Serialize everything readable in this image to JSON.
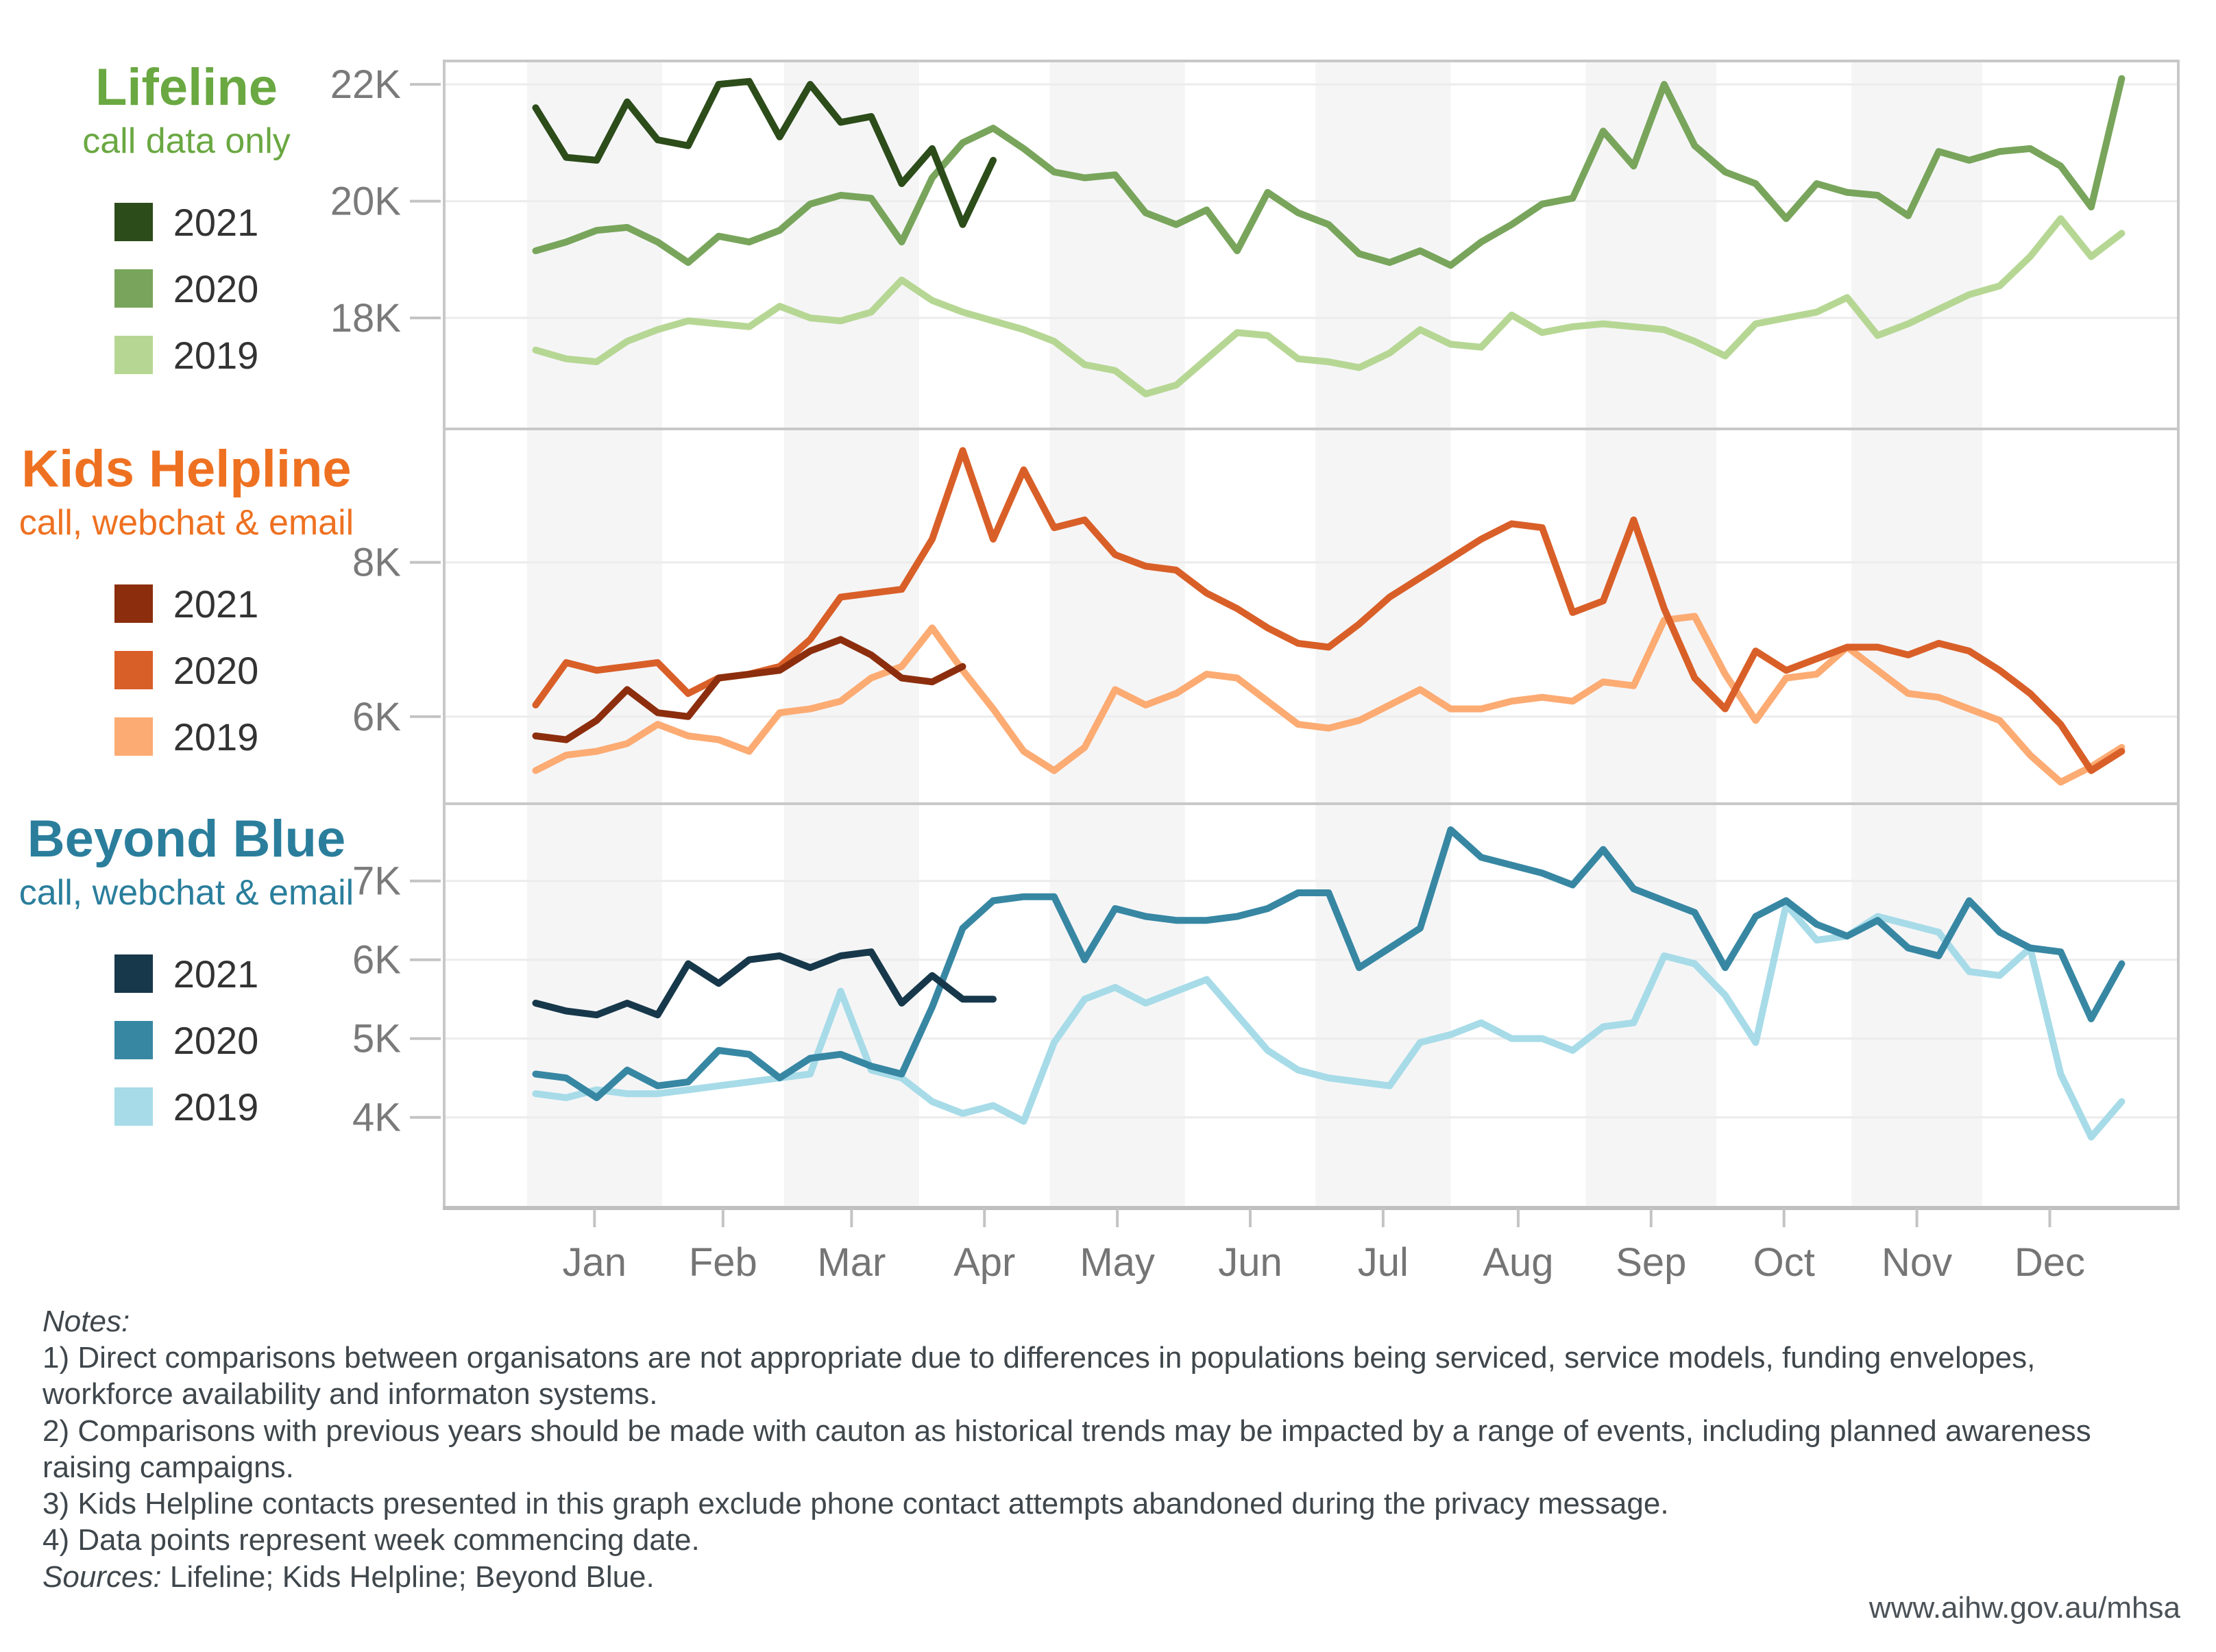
{
  "page": {
    "url": "www.aihw.gov.au/mhsa"
  },
  "months": [
    "Jan",
    "Feb",
    "Mar",
    "Apr",
    "May",
    "Jun",
    "Jul",
    "Aug",
    "Sep",
    "Oct",
    "Nov",
    "Dec"
  ],
  "chart_layout": {
    "shaded_months": [
      0,
      2,
      4,
      6,
      8,
      10
    ],
    "grid": "horizontal-only",
    "legend_position": "left",
    "x_axis": "weekly data points, Jan to Dec"
  },
  "chart_data": [
    {
      "type": "line",
      "title": "Lifeline",
      "subtitle": "call data only",
      "title_color": "#6aa842",
      "unit": "thousands of contacts per week",
      "ylim": [
        16.1,
        22.4
      ],
      "yticks": [
        {
          "value": 22,
          "label": "22K"
        },
        {
          "value": 20,
          "label": "20K"
        },
        {
          "value": 18,
          "label": "18K"
        }
      ],
      "series": [
        {
          "name": "2021",
          "color": "#2c4c1a",
          "start_day": 2,
          "step_days": 7,
          "values": [
            21.6,
            20.75,
            20.7,
            21.7,
            21.05,
            20.95,
            22.0,
            22.05,
            21.1,
            22.0,
            21.35,
            21.45,
            20.3,
            20.9,
            19.6,
            20.7
          ]
        },
        {
          "name": "2020",
          "color": "#78a55b",
          "start_day": 2,
          "step_days": 7,
          "values": [
            19.15,
            19.3,
            19.5,
            19.55,
            19.3,
            18.95,
            19.4,
            19.3,
            19.5,
            19.95,
            20.1,
            20.05,
            19.3,
            20.4,
            21.0,
            21.25,
            20.9,
            20.5,
            20.4,
            20.45,
            19.8,
            19.6,
            19.85,
            19.15,
            20.15,
            19.8,
            19.6,
            19.1,
            18.95,
            19.15,
            18.9,
            19.3,
            19.6,
            19.95,
            20.05,
            21.2,
            20.6,
            22.0,
            20.95,
            20.5,
            20.3,
            19.7,
            20.3,
            20.15,
            20.1,
            19.75,
            20.85,
            20.7,
            20.85,
            20.9,
            20.6,
            19.9,
            22.1
          ]
        },
        {
          "name": "2019",
          "color": "#b6d794",
          "start_day": 2,
          "step_days": 7,
          "values": [
            17.45,
            17.3,
            17.25,
            17.6,
            17.8,
            17.95,
            17.9,
            17.85,
            18.2,
            18.0,
            17.95,
            18.1,
            18.65,
            18.3,
            18.1,
            17.95,
            17.8,
            17.6,
            17.2,
            17.1,
            16.7,
            16.85,
            17.3,
            17.75,
            17.7,
            17.3,
            17.25,
            17.15,
            17.4,
            17.8,
            17.55,
            17.5,
            18.05,
            17.75,
            17.85,
            17.9,
            17.85,
            17.8,
            17.6,
            17.35,
            17.9,
            18.0,
            18.1,
            18.35,
            17.7,
            17.9,
            18.15,
            18.4,
            18.55,
            19.05,
            19.7,
            19.05,
            19.45
          ]
        }
      ]
    },
    {
      "type": "line",
      "title": "Kids Helpline",
      "subtitle": "call, webchat & email",
      "title_color": "#ee7121",
      "unit": "thousands of contacts per week",
      "ylim": [
        4.87,
        9.73
      ],
      "yticks": [
        {
          "value": 8,
          "label": "8K"
        },
        {
          "value": 6,
          "label": "6K"
        }
      ],
      "series": [
        {
          "name": "2021",
          "color": "#8c2e0d",
          "start_day": 2,
          "step_days": 7,
          "values": [
            5.75,
            5.7,
            5.95,
            6.35,
            6.05,
            6.0,
            6.5,
            6.55,
            6.6,
            6.85,
            7.0,
            6.8,
            6.5,
            6.45,
            6.65
          ]
        },
        {
          "name": "2020",
          "color": "#d95f28",
          "start_day": 2,
          "step_days": 7,
          "values": [
            6.15,
            6.7,
            6.6,
            6.65,
            6.7,
            6.3,
            6.5,
            6.55,
            6.65,
            7.0,
            7.55,
            7.6,
            7.65,
            8.3,
            9.45,
            8.3,
            9.2,
            8.45,
            8.55,
            8.1,
            7.95,
            7.9,
            7.6,
            7.4,
            7.15,
            6.95,
            6.9,
            7.2,
            7.55,
            7.8,
            8.05,
            8.3,
            8.5,
            8.45,
            7.35,
            7.5,
            8.55,
            7.4,
            6.5,
            6.1,
            6.85,
            6.6,
            6.75,
            6.9,
            6.9,
            6.8,
            6.95,
            6.85,
            6.6,
            6.3,
            5.9,
            5.3,
            5.55
          ]
        },
        {
          "name": "2019",
          "color": "#fcab73",
          "start_day": 2,
          "step_days": 7,
          "values": [
            5.3,
            5.5,
            5.55,
            5.65,
            5.9,
            5.75,
            5.7,
            5.55,
            6.05,
            6.1,
            6.2,
            6.5,
            6.65,
            7.15,
            6.6,
            6.1,
            5.55,
            5.3,
            5.6,
            6.35,
            6.15,
            6.3,
            6.55,
            6.5,
            6.2,
            5.9,
            5.85,
            5.95,
            6.15,
            6.35,
            6.1,
            6.1,
            6.2,
            6.25,
            6.2,
            6.45,
            6.4,
            7.25,
            7.3,
            6.55,
            5.95,
            6.5,
            6.55,
            6.9,
            6.6,
            6.3,
            6.25,
            6.1,
            5.95,
            5.5,
            5.15,
            5.35,
            5.6
          ]
        }
      ]
    },
    {
      "type": "line",
      "title": "Beyond Blue",
      "subtitle": "call, webchat & email",
      "title_color": "#2a7e9c",
      "unit": "thousands of contacts per week",
      "ylim": [
        2.85,
        7.98
      ],
      "yticks": [
        {
          "value": 7,
          "label": "7K"
        },
        {
          "value": 6,
          "label": "6K"
        },
        {
          "value": 5,
          "label": "5K"
        },
        {
          "value": 4,
          "label": "4K"
        }
      ],
      "series": [
        {
          "name": "2021",
          "color": "#17384a",
          "start_day": 2,
          "step_days": 7,
          "values": [
            5.45,
            5.35,
            5.3,
            5.45,
            5.3,
            5.95,
            5.7,
            6.0,
            6.05,
            5.9,
            6.05,
            6.1,
            5.45,
            5.8,
            5.5,
            5.5
          ]
        },
        {
          "name": "2020",
          "color": "#3787a3",
          "start_day": 2,
          "step_days": 7,
          "values": [
            4.55,
            4.5,
            4.25,
            4.6,
            4.4,
            4.45,
            4.85,
            4.8,
            4.5,
            4.75,
            4.8,
            4.65,
            4.55,
            5.4,
            6.4,
            6.75,
            6.8,
            6.8,
            6.0,
            6.65,
            6.55,
            6.5,
            6.5,
            6.55,
            6.65,
            6.85,
            6.85,
            5.9,
            6.15,
            6.4,
            7.65,
            7.3,
            7.2,
            7.1,
            6.95,
            7.4,
            6.9,
            6.75,
            6.6,
            5.9,
            6.55,
            6.75,
            6.45,
            6.3,
            6.5,
            6.15,
            6.05,
            6.75,
            6.35,
            6.15,
            6.1,
            5.25,
            5.95
          ]
        },
        {
          "name": "2019",
          "color": "#a7dbe8",
          "start_day": 2,
          "step_days": 7,
          "values": [
            4.3,
            4.25,
            4.35,
            4.3,
            4.3,
            4.35,
            4.4,
            4.45,
            4.5,
            4.55,
            5.6,
            4.6,
            4.5,
            4.2,
            4.05,
            4.15,
            3.95,
            4.95,
            5.5,
            5.65,
            5.45,
            5.6,
            5.75,
            5.3,
            4.85,
            4.6,
            4.5,
            4.45,
            4.4,
            4.95,
            5.05,
            5.2,
            5.0,
            5.0,
            4.85,
            5.15,
            5.2,
            6.05,
            5.95,
            5.55,
            4.95,
            6.7,
            6.25,
            6.3,
            6.55,
            6.45,
            6.35,
            5.85,
            5.8,
            6.15,
            4.55,
            3.75,
            4.2
          ]
        }
      ]
    }
  ],
  "notes": {
    "heading": "Notes:",
    "lines": [
      "1) Direct comparisons between organisatons are not appropriate due to differences in populations being serviced, service models, funding envelopes, workforce availability and informaton systems.",
      "2) Comparisons with previous years should be made with cauton as historical trends may be impacted by a range of events, including planned awareness raising campaigns.",
      "3) Kids Helpline contacts presented in this graph exclude phone contact attempts abandoned during the privacy message.",
      "4) Data points represent week commencing date."
    ],
    "sources_label": "Sources:",
    "sources_text": "Lifeline; Kids Helpline; Beyond Blue."
  }
}
